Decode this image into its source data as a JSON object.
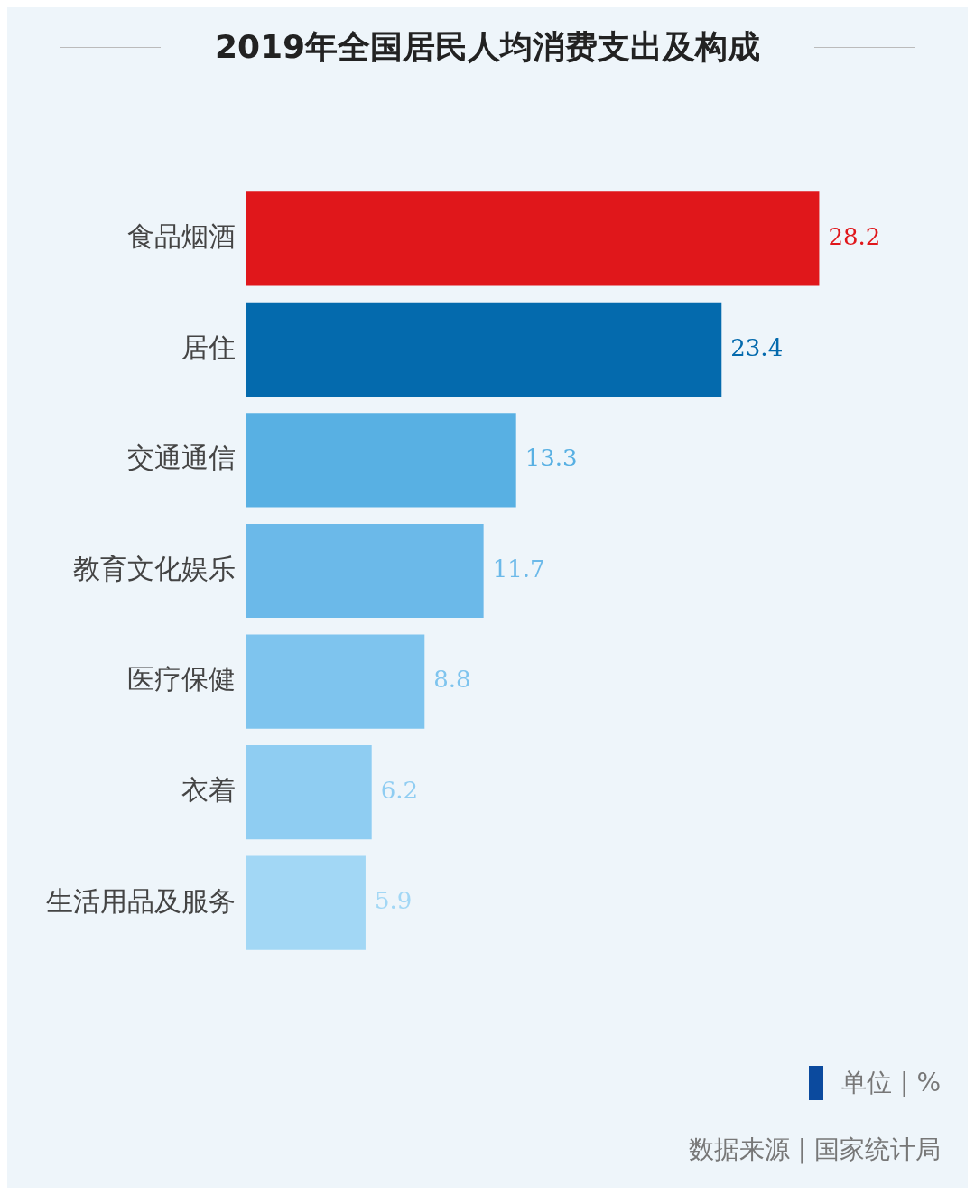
{
  "chart_data": {
    "type": "bar",
    "orientation": "horizontal",
    "title": "2019年全国居民人均消费支出及构成",
    "data_labels": true,
    "legend": false,
    "categories": [
      "食品烟酒",
      "居住",
      "交通通信",
      "教育文化娱乐",
      "医疗保健",
      "衣着",
      "生活用品及服务"
    ],
    "values": [
      28.2,
      23.4,
      13.3,
      11.7,
      8.8,
      6.2,
      5.9
    ],
    "colors": [
      "#e0171b",
      "#046aad",
      "#58b0e3",
      "#6bb9e9",
      "#7ec4ee",
      "#8fcdf2",
      "#a2d7f5"
    ],
    "annotations": [
      "单位 | %",
      "数据来源 | 国家统计局"
    ]
  }
}
